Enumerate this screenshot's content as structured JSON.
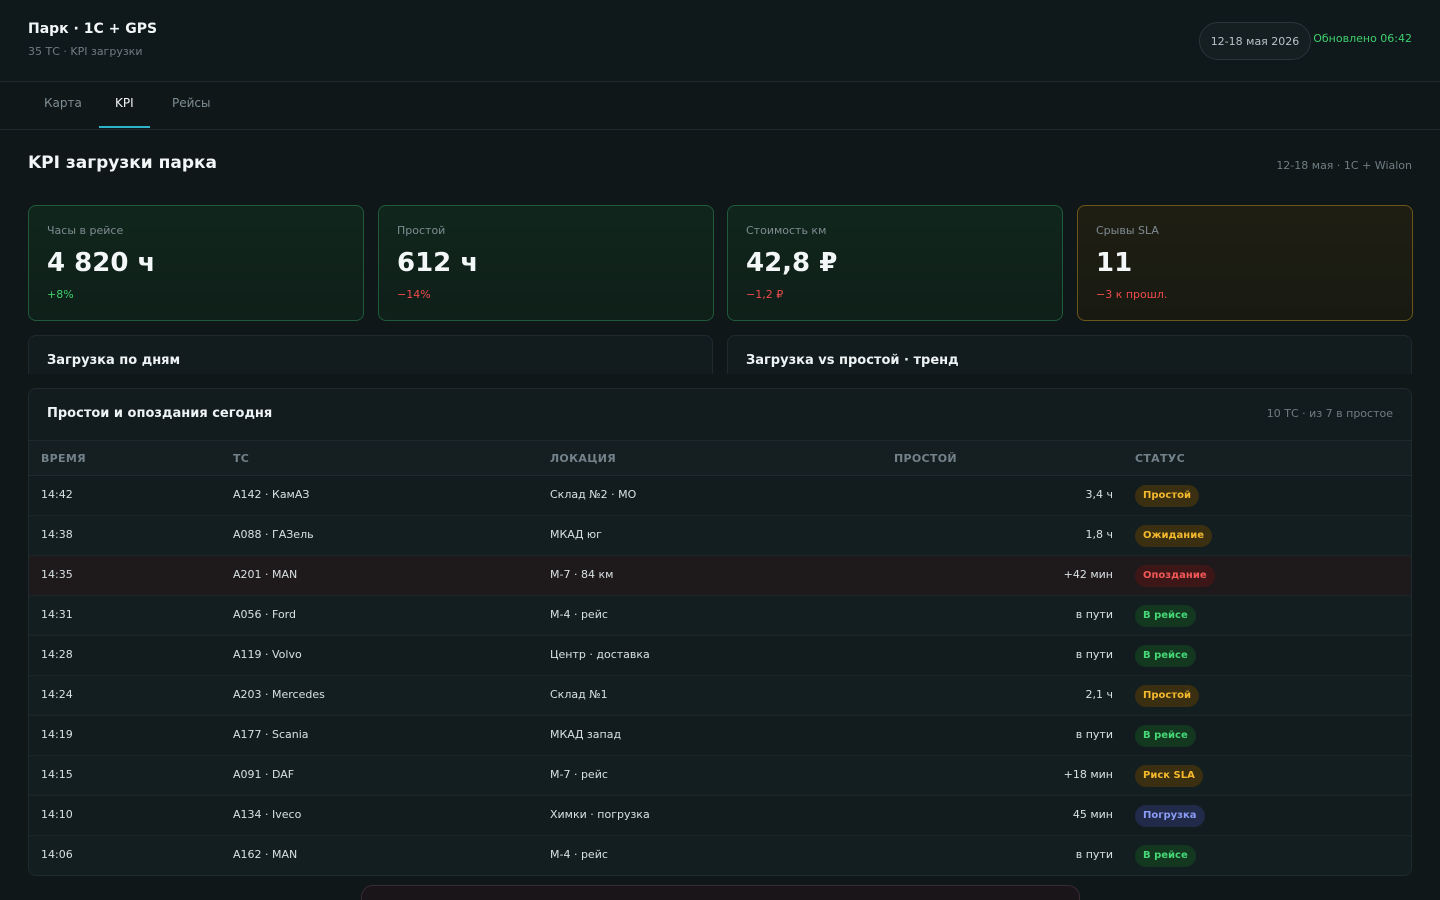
{
  "header": {
    "title": "Парк · 1С + GPS",
    "subtitle": "35 ТС · KPI загрузки",
    "date_range": "12-18 мая 2026",
    "updated": "Обновлено 06:42"
  },
  "tabs": [
    {
      "label": "Карта"
    },
    {
      "label": "KPI"
    },
    {
      "label": "Рейсы"
    }
  ],
  "active_tab": "KPI",
  "page": {
    "title": "KPI загрузки парка",
    "meta": "12-18 мая · 1С + Wialon"
  },
  "kpis": [
    {
      "label": "Часы в рейсе",
      "value": "4 820 ч",
      "delta": "+8%"
    },
    {
      "label": "Простой",
      "value": "612 ч",
      "delta": "−14%"
    },
    {
      "label": "Стоимость км",
      "value": "42,8 ₽",
      "delta": "−1,2 ₽"
    },
    {
      "label": "Срывы SLA",
      "value": "11",
      "delta": "−3 к прошл."
    }
  ],
  "panels": {
    "daily": "Загрузка по дням",
    "trend": "Загрузка vs простой · тренд"
  },
  "table": {
    "title": "Простои и опоздания сегодня",
    "meta": "10 ТС · из 7 в простое",
    "columns": [
      "ВРЕМЯ",
      "ТС",
      "ЛОКАЦИЯ",
      "ПРОСТОЙ",
      "СТАТУС"
    ],
    "rows": [
      {
        "time": "14:42",
        "vehicle": "А142 · КамАЗ",
        "location": "Склад №2 · МО",
        "idle": "3,4 ч",
        "status": "Простой"
      },
      {
        "time": "14:38",
        "vehicle": "А088 · ГАЗель",
        "location": "МКАД юг",
        "idle": "1,8 ч",
        "status": "Ожидание"
      },
      {
        "time": "14:35",
        "vehicle": "А201 · MAN",
        "location": "М-7 · 84 км",
        "idle": "+42 мин",
        "status": "Опоздание"
      },
      {
        "time": "14:31",
        "vehicle": "А056 · Ford",
        "location": "М-4 · рейс",
        "idle": "в пути",
        "status": "В рейсе"
      },
      {
        "time": "14:28",
        "vehicle": "А119 · Volvo",
        "location": "Центр · доставка",
        "idle": "в пути",
        "status": "В рейсе"
      },
      {
        "time": "14:24",
        "vehicle": "А203 · Mercedes",
        "location": "Склад №1",
        "idle": "2,1 ч",
        "status": "Простой"
      },
      {
        "time": "14:19",
        "vehicle": "А177 · Scania",
        "location": "МКАД запад",
        "idle": "в пути",
        "status": "В рейсе"
      },
      {
        "time": "14:15",
        "vehicle": "А091 · DAF",
        "location": "М-7 · рейс",
        "idle": "+18 мин",
        "status": "Риск SLA"
      },
      {
        "time": "14:10",
        "vehicle": "А134 · Iveco",
        "location": "Химки · погрузка",
        "idle": "45 мин",
        "status": "Погрузка"
      },
      {
        "time": "14:06",
        "vehicle": "А162 · MAN",
        "location": "М-4 · рейс",
        "idle": "в пути",
        "status": "В рейсе"
      }
    ]
  },
  "colors": {
    "accent": "#2fb3c9",
    "positive": "#3fcf6e",
    "negative": "#ef4b4b",
    "warning": "#f5b92e"
  }
}
